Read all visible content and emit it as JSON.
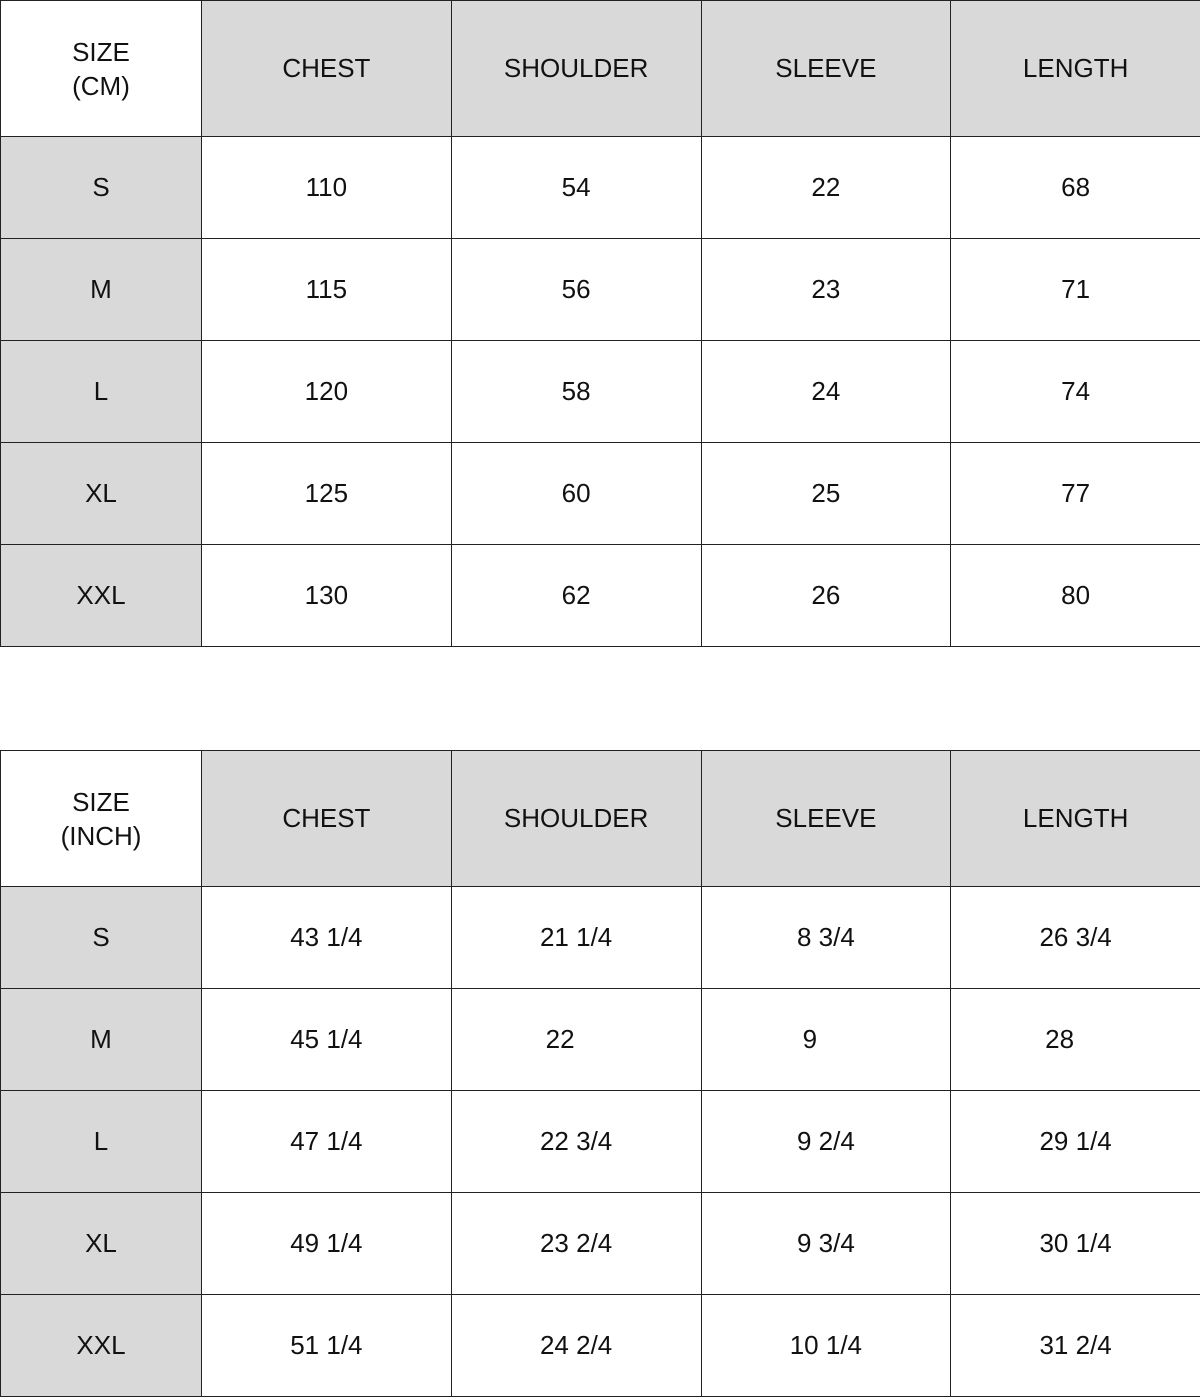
{
  "tables": [
    {
      "corner": [
        "SIZE",
        "(CM)"
      ],
      "headers": [
        "CHEST",
        "SHOULDER",
        "SLEEVE",
        "LENGTH"
      ],
      "rows": [
        {
          "size": "S",
          "values": [
            "110",
            "54",
            "22",
            "68"
          ]
        },
        {
          "size": "M",
          "values": [
            "115",
            "56",
            "23",
            "71"
          ]
        },
        {
          "size": "L",
          "values": [
            "120",
            "58",
            "24",
            "74"
          ]
        },
        {
          "size": "XL",
          "values": [
            "125",
            "60",
            "25",
            "77"
          ]
        },
        {
          "size": "XXL",
          "values": [
            "130",
            "62",
            "26",
            "80"
          ]
        }
      ]
    },
    {
      "corner": [
        "SIZE",
        "(INCH)"
      ],
      "headers": [
        "CHEST",
        "SHOULDER",
        "SLEEVE",
        "LENGTH"
      ],
      "rows": [
        {
          "size": "S",
          "values": [
            "43 1/4",
            "21 1/4",
            "8 3/4",
            "26 3/4"
          ]
        },
        {
          "size": "M",
          "values": [
            "45 1/4",
            "22",
            "9",
            "28"
          ]
        },
        {
          "size": "L",
          "values": [
            "47 1/4",
            "22 3/4",
            "9 2/4",
            "29 1/4"
          ]
        },
        {
          "size": "XL",
          "values": [
            "49 1/4",
            "23 2/4",
            "9 3/4",
            "30 1/4"
          ]
        },
        {
          "size": "XXL",
          "values": [
            "51 1/4",
            "24 2/4",
            "10 1/4",
            "31 2/4"
          ]
        }
      ]
    }
  ],
  "colors": {
    "header_bg": "#d9d9d9",
    "cell_bg": "#ffffff",
    "border": "#222222"
  }
}
